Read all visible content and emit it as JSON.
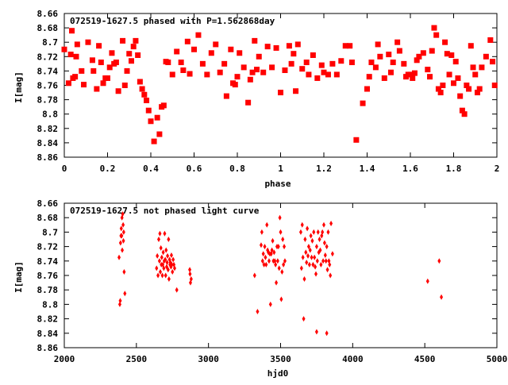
{
  "colors": {
    "marker": "#ff0000",
    "frame": "#000000",
    "background": "#ffffff"
  },
  "chart_data": [
    {
      "type": "scatter",
      "title": "072519-1627.5 phased with P=1.562868day",
      "xlabel": "phase",
      "ylabel": "I[mag]",
      "xlim": [
        0,
        2
      ],
      "ylim": [
        8.66,
        8.86
      ],
      "y_inverted": true,
      "grid": false,
      "marker": "filled-square",
      "x_ticks": [
        "0",
        "0.2",
        "0.4",
        "0.6",
        "0.8",
        "1",
        "1.2",
        "1.4",
        "1.6",
        "1.8",
        "2"
      ],
      "y_ticks": [
        "8.66",
        "8.68",
        "8.7",
        "8.72",
        "8.74",
        "8.76",
        "8.78",
        "8.8",
        "8.82",
        "8.84",
        "8.86"
      ],
      "points": [
        [
          0.0,
          8.71
        ],
        [
          0.02,
          8.757
        ],
        [
          0.03,
          8.717
        ],
        [
          0.035,
          8.684
        ],
        [
          0.04,
          8.75
        ],
        [
          0.05,
          8.748
        ],
        [
          0.055,
          8.72
        ],
        [
          0.06,
          8.703
        ],
        [
          0.08,
          8.74
        ],
        [
          0.09,
          8.759
        ],
        [
          0.11,
          8.7
        ],
        [
          0.13,
          8.725
        ],
        [
          0.135,
          8.74
        ],
        [
          0.15,
          8.765
        ],
        [
          0.16,
          8.705
        ],
        [
          0.17,
          8.728
        ],
        [
          0.18,
          8.757
        ],
        [
          0.19,
          8.75
        ],
        [
          0.2,
          8.75
        ],
        [
          0.21,
          8.735
        ],
        [
          0.22,
          8.715
        ],
        [
          0.23,
          8.73
        ],
        [
          0.24,
          8.728
        ],
        [
          0.25,
          8.768
        ],
        [
          0.27,
          8.698
        ],
        [
          0.28,
          8.76
        ],
        [
          0.29,
          8.74
        ],
        [
          0.3,
          8.716
        ],
        [
          0.31,
          8.726
        ],
        [
          0.32,
          8.706
        ],
        [
          0.33,
          8.698
        ],
        [
          0.34,
          8.718
        ],
        [
          0.35,
          8.755
        ],
        [
          0.36,
          8.765
        ],
        [
          0.37,
          8.773
        ],
        [
          0.38,
          8.781
        ],
        [
          0.39,
          8.795
        ],
        [
          0.4,
          8.81
        ],
        [
          0.415,
          8.838
        ],
        [
          0.43,
          8.805
        ],
        [
          0.44,
          8.828
        ],
        [
          0.45,
          8.79
        ],
        [
          0.46,
          8.788
        ],
        [
          0.47,
          8.727
        ],
        [
          0.48,
          8.728
        ],
        [
          0.5,
          8.745
        ],
        [
          0.52,
          8.713
        ],
        [
          0.54,
          8.728
        ],
        [
          0.55,
          8.739
        ],
        [
          0.57,
          8.699
        ],
        [
          0.58,
          8.744
        ],
        [
          0.6,
          8.71
        ],
        [
          0.62,
          8.69
        ],
        [
          0.64,
          8.73
        ],
        [
          0.66,
          8.745
        ],
        [
          0.68,
          8.715
        ],
        [
          0.7,
          8.703
        ],
        [
          0.72,
          8.742
        ],
        [
          0.74,
          8.73
        ],
        [
          0.75,
          8.775
        ],
        [
          0.77,
          8.71
        ],
        [
          0.78,
          8.757
        ],
        [
          0.79,
          8.759
        ],
        [
          0.8,
          8.748
        ],
        [
          0.81,
          8.715
        ],
        [
          0.83,
          8.735
        ],
        [
          0.85,
          8.784
        ],
        [
          0.86,
          8.752
        ],
        [
          0.87,
          8.742
        ],
        [
          0.88,
          8.698
        ],
        [
          0.89,
          8.738
        ],
        [
          0.9,
          8.72
        ],
        [
          0.92,
          8.742
        ],
        [
          0.94,
          8.706
        ],
        [
          0.96,
          8.735
        ],
        [
          0.98,
          8.708
        ],
        [
          1.0,
          8.77
        ],
        [
          1.02,
          8.739
        ],
        [
          1.04,
          8.705
        ],
        [
          1.05,
          8.73
        ],
        [
          1.06,
          8.716
        ],
        [
          1.07,
          8.768
        ],
        [
          1.08,
          8.703
        ],
        [
          1.1,
          8.737
        ],
        [
          1.12,
          8.728
        ],
        [
          1.13,
          8.745
        ],
        [
          1.15,
          8.718
        ],
        [
          1.17,
          8.75
        ],
        [
          1.19,
          8.732
        ],
        [
          1.2,
          8.742
        ],
        [
          1.22,
          8.745
        ],
        [
          1.24,
          8.73
        ],
        [
          1.26,
          8.745
        ],
        [
          1.28,
          8.726
        ],
        [
          1.3,
          8.705
        ],
        [
          1.32,
          8.705
        ],
        [
          1.33,
          8.728
        ],
        [
          1.35,
          8.836
        ],
        [
          1.38,
          8.785
        ],
        [
          1.4,
          8.765
        ],
        [
          1.41,
          8.748
        ],
        [
          1.42,
          8.728
        ],
        [
          1.44,
          8.735
        ],
        [
          1.45,
          8.703
        ],
        [
          1.46,
          8.72
        ],
        [
          1.48,
          8.75
        ],
        [
          1.5,
          8.717
        ],
        [
          1.51,
          8.742
        ],
        [
          1.52,
          8.728
        ],
        [
          1.54,
          8.7
        ],
        [
          1.55,
          8.712
        ],
        [
          1.57,
          8.73
        ],
        [
          1.58,
          8.748
        ],
        [
          1.59,
          8.745
        ],
        [
          1.6,
          8.745
        ],
        [
          1.61,
          8.75
        ],
        [
          1.62,
          8.743
        ],
        [
          1.63,
          8.725
        ],
        [
          1.64,
          8.72
        ],
        [
          1.66,
          8.715
        ],
        [
          1.68,
          8.738
        ],
        [
          1.69,
          8.748
        ],
        [
          1.7,
          8.712
        ],
        [
          1.71,
          8.68
        ],
        [
          1.72,
          8.69
        ],
        [
          1.73,
          8.765
        ],
        [
          1.74,
          8.77
        ],
        [
          1.75,
          8.76
        ],
        [
          1.76,
          8.7
        ],
        [
          1.77,
          8.716
        ],
        [
          1.78,
          8.745
        ],
        [
          1.79,
          8.718
        ],
        [
          1.8,
          8.757
        ],
        [
          1.81,
          8.727
        ],
        [
          1.82,
          8.75
        ],
        [
          1.83,
          8.775
        ],
        [
          1.84,
          8.795
        ],
        [
          1.85,
          8.8
        ],
        [
          1.86,
          8.76
        ],
        [
          1.87,
          8.765
        ],
        [
          1.88,
          8.705
        ],
        [
          1.89,
          8.735
        ],
        [
          1.9,
          8.745
        ],
        [
          1.91,
          8.77
        ],
        [
          1.92,
          8.765
        ],
        [
          1.93,
          8.735
        ],
        [
          1.95,
          8.72
        ],
        [
          1.97,
          8.697
        ],
        [
          1.98,
          8.727
        ],
        [
          1.99,
          8.76
        ]
      ]
    },
    {
      "type": "scatter",
      "title": "072519-1627.5 not phased light curve",
      "xlabel": "hjd0",
      "ylabel": "I[mag]",
      "xlim": [
        2000,
        5000
      ],
      "ylim": [
        8.66,
        8.86
      ],
      "y_inverted": true,
      "grid": false,
      "marker": "small-diamond",
      "x_ticks": [
        "2000",
        "2500",
        "3000",
        "3500",
        "4000",
        "4500",
        "5000"
      ],
      "y_ticks": [
        "8.66",
        "8.68",
        "8.7",
        "8.72",
        "8.74",
        "8.76",
        "8.78",
        "8.8",
        "8.82",
        "8.84",
        "8.86"
      ],
      "points": [
        [
          2380,
          8.735
        ],
        [
          2385,
          8.8
        ],
        [
          2388,
          8.795
        ],
        [
          2390,
          8.715
        ],
        [
          2393,
          8.705
        ],
        [
          2395,
          8.695
        ],
        [
          2398,
          8.705
        ],
        [
          2400,
          8.68
        ],
        [
          2402,
          8.725
        ],
        [
          2405,
          8.675
        ],
        [
          2408,
          8.69
        ],
        [
          2410,
          8.712
        ],
        [
          2412,
          8.7
        ],
        [
          2415,
          8.755
        ],
        [
          2420,
          8.785
        ],
        [
          2640,
          8.75
        ],
        [
          2645,
          8.733
        ],
        [
          2650,
          8.76
        ],
        [
          2655,
          8.71
        ],
        [
          2660,
          8.74
        ],
        [
          2663,
          8.702
        ],
        [
          2666,
          8.755
        ],
        [
          2670,
          8.722
        ],
        [
          2673,
          8.745
        ],
        [
          2676,
          8.735
        ],
        [
          2680,
          8.76
        ],
        [
          2683,
          8.745
        ],
        [
          2686,
          8.728
        ],
        [
          2690,
          8.75
        ],
        [
          2693,
          8.74
        ],
        [
          2696,
          8.702
        ],
        [
          2700,
          8.738
        ],
        [
          2703,
          8.76
        ],
        [
          2706,
          8.725
        ],
        [
          2710,
          8.748
        ],
        [
          2713,
          8.742
        ],
        [
          2716,
          8.733
        ],
        [
          2720,
          8.752
        ],
        [
          2723,
          8.71
        ],
        [
          2726,
          8.765
        ],
        [
          2730,
          8.738
        ],
        [
          2733,
          8.745
        ],
        [
          2736,
          8.742
        ],
        [
          2740,
          8.748
        ],
        [
          2743,
          8.732
        ],
        [
          2746,
          8.745
        ],
        [
          2750,
          8.755
        ],
        [
          2755,
          8.738
        ],
        [
          2760,
          8.745
        ],
        [
          2765,
          8.75
        ],
        [
          2780,
          8.78
        ],
        [
          2870,
          8.752
        ],
        [
          2872,
          8.758
        ],
        [
          2875,
          8.77
        ],
        [
          2880,
          8.765
        ],
        [
          3320,
          8.76
        ],
        [
          3340,
          8.81
        ],
        [
          3365,
          8.718
        ],
        [
          3370,
          8.7
        ],
        [
          3375,
          8.74
        ],
        [
          3380,
          8.73
        ],
        [
          3385,
          8.745
        ],
        [
          3390,
          8.72
        ],
        [
          3395,
          8.735
        ],
        [
          3400,
          8.745
        ],
        [
          3405,
          8.69
        ],
        [
          3410,
          8.725
        ],
        [
          3415,
          8.728
        ],
        [
          3420,
          8.74
        ],
        [
          3425,
          8.73
        ],
        [
          3430,
          8.8
        ],
        [
          3435,
          8.73
        ],
        [
          3440,
          8.725
        ],
        [
          3445,
          8.712
        ],
        [
          3450,
          8.74
        ],
        [
          3455,
          8.728
        ],
        [
          3460,
          8.74
        ],
        [
          3465,
          8.745
        ],
        [
          3470,
          8.77
        ],
        [
          3475,
          8.72
        ],
        [
          3480,
          8.74
        ],
        [
          3485,
          8.72
        ],
        [
          3490,
          8.75
        ],
        [
          3495,
          8.68
        ],
        [
          3500,
          8.7
        ],
        [
          3505,
          8.793
        ],
        [
          3510,
          8.755
        ],
        [
          3515,
          8.71
        ],
        [
          3520,
          8.745
        ],
        [
          3525,
          8.72
        ],
        [
          3530,
          8.74
        ],
        [
          3640,
          8.7
        ],
        [
          3645,
          8.75
        ],
        [
          3650,
          8.69
        ],
        [
          3655,
          8.735
        ],
        [
          3660,
          8.82
        ],
        [
          3665,
          8.765
        ],
        [
          3670,
          8.71
        ],
        [
          3675,
          8.728
        ],
        [
          3680,
          8.742
        ],
        [
          3685,
          8.695
        ],
        [
          3690,
          8.733
        ],
        [
          3695,
          8.72
        ],
        [
          3700,
          8.745
        ],
        [
          3705,
          8.725
        ],
        [
          3710,
          8.705
        ],
        [
          3715,
          8.735
        ],
        [
          3720,
          8.712
        ],
        [
          3725,
          8.745
        ],
        [
          3730,
          8.7
        ],
        [
          3735,
          8.735
        ],
        [
          3740,
          8.748
        ],
        [
          3745,
          8.758
        ],
        [
          3750,
          8.72
        ],
        [
          3755,
          8.74
        ],
        [
          3760,
          8.7
        ],
        [
          3765,
          8.728
        ],
        [
          3770,
          8.71
        ],
        [
          3775,
          8.725
        ],
        [
          3780,
          8.745
        ],
        [
          3785,
          8.705
        ],
        [
          3790,
          8.7
        ],
        [
          3795,
          8.74
        ],
        [
          3800,
          8.69
        ],
        [
          3805,
          8.715
        ],
        [
          3810,
          8.732
        ],
        [
          3815,
          8.74
        ],
        [
          3820,
          8.72
        ],
        [
          3825,
          8.752
        ],
        [
          3830,
          8.7
        ],
        [
          3835,
          8.74
        ],
        [
          3840,
          8.745
        ],
        [
          3845,
          8.76
        ],
        [
          3850,
          8.688
        ],
        [
          3860,
          8.73
        ],
        [
          3750,
          8.838
        ],
        [
          3820,
          8.84
        ],
        [
          4520,
          8.768
        ],
        [
          4600,
          8.74
        ],
        [
          4615,
          8.79
        ]
      ]
    }
  ]
}
